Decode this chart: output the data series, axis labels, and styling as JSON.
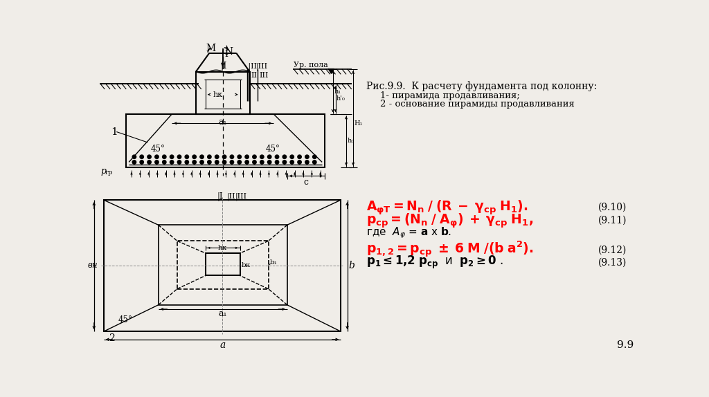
{
  "bg_color": "#f0ede8",
  "title_text": "Рис.9.9.  К расчету фундамента под колонну:",
  "legend_line1": "1- пирамида продавливания;",
  "legend_line2": "2 - основание пирамиды продавливания",
  "eq_num1": "(9.10)",
  "eq_num2": "(9.11)",
  "eq_num3": "(9.12)",
  "eq_num4": "(9.13)",
  "page_num": "9.9"
}
